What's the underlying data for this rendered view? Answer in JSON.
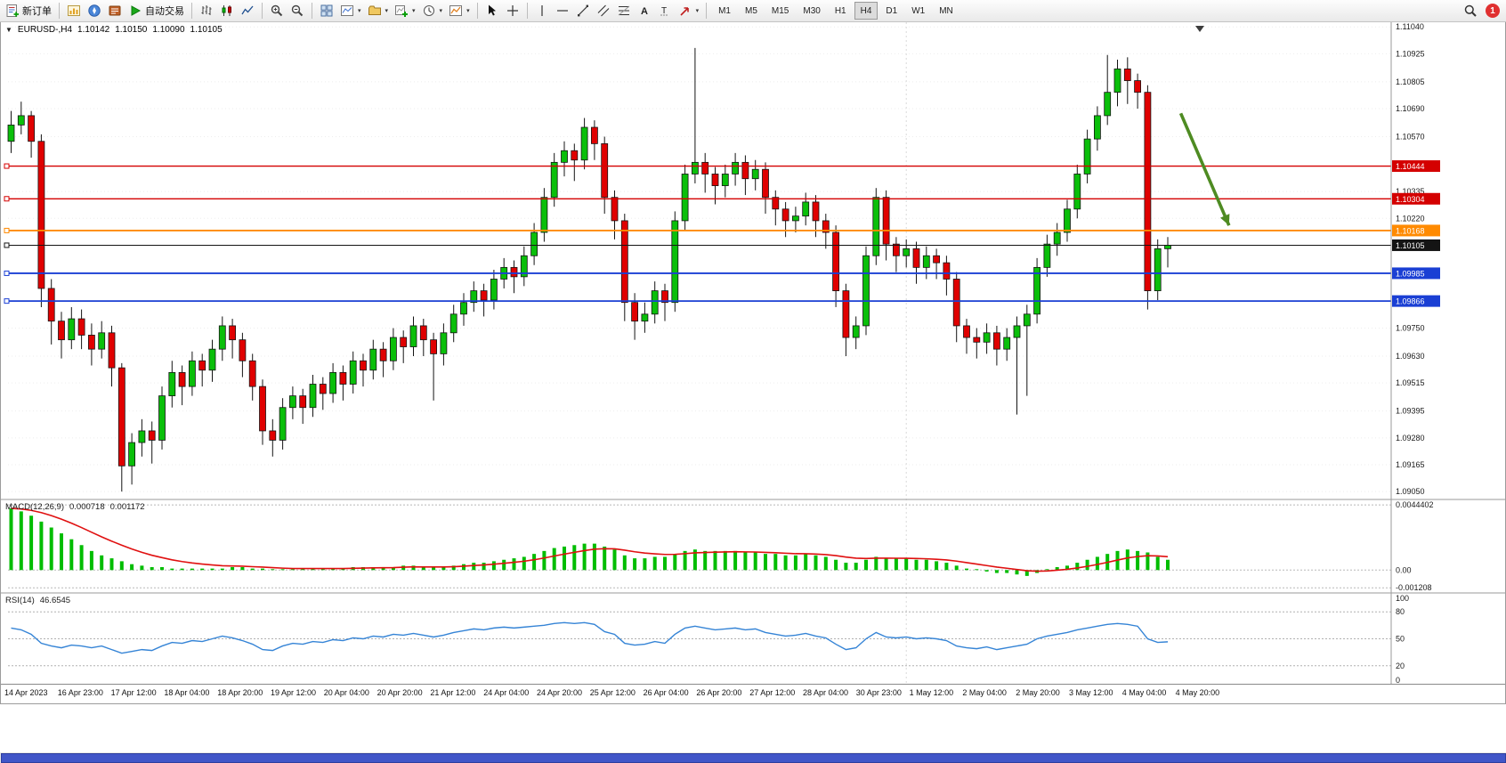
{
  "toolbar": {
    "new_order": "新订单",
    "auto_trading": "自动交易",
    "timeframes": [
      "M1",
      "M5",
      "M15",
      "M30",
      "H1",
      "H4",
      "D1",
      "W1",
      "MN"
    ],
    "active_timeframe": "H4",
    "notification_count": "1"
  },
  "chart_header": {
    "symbol": "EURUSD-,H4",
    "open": "1.10142",
    "high": "1.10150",
    "low": "1.10090",
    "close": "1.10105"
  },
  "price_axis_labels": [
    "1.11040",
    "1.10925",
    "1.10805",
    "1.10690",
    "1.10570",
    "1.10335",
    "1.10220",
    "1.09750",
    "1.09630",
    "1.09515",
    "1.09395",
    "1.09280",
    "1.09165",
    "1.09050"
  ],
  "macd_panel": {
    "label": "MACD(12,26,9)",
    "value_main": "0.000718",
    "value_signal": "0.001172",
    "axis": [
      "0.0044402",
      "0.00",
      "-0.001208"
    ]
  },
  "rsi_panel": {
    "label": "RSI(14)",
    "value": "46.6545",
    "axis": [
      "100",
      "80",
      "50",
      "20",
      "0"
    ]
  },
  "time_axis": [
    "14 Apr 2023",
    "16 Apr 23:00",
    "17 Apr 12:00",
    "18 Apr 04:00",
    "18 Apr 20:00",
    "19 Apr 12:00",
    "20 Apr 04:00",
    "20 Apr 20:00",
    "21 Apr 12:00",
    "24 Apr 04:00",
    "24 Apr 20:00",
    "25 Apr 12:00",
    "26 Apr 04:00",
    "26 Apr 20:00",
    "27 Apr 12:00",
    "28 Apr 04:00",
    "30 Apr 23:00",
    "1 May 12:00",
    "2 May 04:00",
    "2 May 20:00",
    "3 May 12:00",
    "4 May 04:00",
    "4 May 20:00"
  ],
  "chart_data": {
    "type": "candlestick",
    "symbol": "EURUSD-",
    "timeframe": "H4",
    "price_top": 1.1106,
    "price_bottom": 1.0902,
    "up_color": "#0abf0a",
    "down_color": "#e00000",
    "outline_color": "#141414",
    "grid_prices": [
      1.1104,
      1.10925,
      1.10805,
      1.1069,
      1.1057,
      1.10335,
      1.1022,
      1.0975,
      1.0963,
      1.09515,
      1.09395,
      1.0928,
      1.09165,
      1.0905
    ],
    "separator_index": 89,
    "hlines": [
      {
        "price": 1.10444,
        "label": "1.10444",
        "color": "#d40000",
        "width": 1.4
      },
      {
        "price": 1.10304,
        "label": "1.10304",
        "color": "#d40000",
        "width": 1.4
      },
      {
        "price": 1.10168,
        "label": "1.10168",
        "color": "#ff8a00",
        "width": 1.8
      },
      {
        "price": 1.10105,
        "label": "1.10105",
        "color": "#141414",
        "width": 1
      },
      {
        "price": 1.09985,
        "label": "1.09985",
        "color": "#1a3fd4",
        "width": 1.8
      },
      {
        "price": 1.09866,
        "label": "1.09866",
        "color": "#1a3fd4",
        "width": 1.8
      }
    ],
    "arrow": {
      "i1": 116.6,
      "p1": 1.1067,
      "i2": 121.4,
      "p2": 1.1019,
      "color": "#4e8b22"
    },
    "candles": [
      [
        1.1055,
        1.1068,
        1.105,
        1.1062
      ],
      [
        1.1062,
        1.1072,
        1.1058,
        1.1066
      ],
      [
        1.1066,
        1.1068,
        1.1048,
        1.1055
      ],
      [
        1.1055,
        1.1058,
        1.0984,
        1.0992
      ],
      [
        1.0992,
        1.0996,
        1.0968,
        1.0978
      ],
      [
        1.0978,
        1.0982,
        1.0962,
        1.097
      ],
      [
        1.097,
        1.0984,
        1.0966,
        1.0979
      ],
      [
        1.0979,
        1.0983,
        1.0966,
        1.0972
      ],
      [
        1.0972,
        1.0977,
        1.0959,
        1.0966
      ],
      [
        1.0966,
        1.0978,
        1.0962,
        1.0973
      ],
      [
        1.0973,
        1.0976,
        1.095,
        1.0958
      ],
      [
        1.0958,
        1.096,
        1.0905,
        1.0916
      ],
      [
        1.0916,
        1.093,
        1.0908,
        1.0926
      ],
      [
        1.0926,
        1.0936,
        1.092,
        1.0931
      ],
      [
        1.0931,
        1.0935,
        1.0917,
        1.0927
      ],
      [
        1.0927,
        1.095,
        1.0923,
        1.0946
      ],
      [
        1.0946,
        1.0961,
        1.0941,
        1.0956
      ],
      [
        1.0956,
        1.0959,
        1.0942,
        1.095
      ],
      [
        1.095,
        1.0965,
        1.0946,
        1.0961
      ],
      [
        1.0961,
        1.0964,
        1.095,
        1.0957
      ],
      [
        1.0957,
        1.097,
        1.0952,
        1.0966
      ],
      [
        1.0966,
        1.098,
        1.0961,
        1.0976
      ],
      [
        1.0976,
        1.0979,
        1.0962,
        1.097
      ],
      [
        1.097,
        1.0973,
        1.0954,
        1.0961
      ],
      [
        1.0961,
        1.0964,
        1.0944,
        1.095
      ],
      [
        1.095,
        1.0953,
        1.0925,
        1.0931
      ],
      [
        1.0931,
        1.0936,
        1.092,
        1.0927
      ],
      [
        1.0927,
        1.0945,
        1.0923,
        1.0941
      ],
      [
        1.0941,
        1.095,
        1.0936,
        1.0946
      ],
      [
        1.0946,
        1.0949,
        1.0934,
        1.0941
      ],
      [
        1.0941,
        1.0955,
        1.0937,
        1.0951
      ],
      [
        1.0951,
        1.0954,
        1.094,
        1.0947
      ],
      [
        1.0947,
        1.096,
        1.0943,
        1.0956
      ],
      [
        1.0956,
        1.0959,
        1.0944,
        1.0951
      ],
      [
        1.0951,
        1.0965,
        1.0947,
        1.0961
      ],
      [
        1.0961,
        1.0964,
        1.095,
        1.0957
      ],
      [
        1.0957,
        1.097,
        1.0953,
        1.0966
      ],
      [
        1.0966,
        1.0969,
        1.0954,
        1.0961
      ],
      [
        1.0961,
        1.0975,
        1.0957,
        1.0971
      ],
      [
        1.0971,
        1.0974,
        1.096,
        1.0967
      ],
      [
        1.0967,
        1.098,
        1.0963,
        1.0976
      ],
      [
        1.0976,
        1.0979,
        1.0963,
        1.097
      ],
      [
        1.097,
        1.0973,
        1.0944,
        1.0964
      ],
      [
        1.0964,
        1.0977,
        1.0959,
        1.0973
      ],
      [
        1.0973,
        1.0985,
        1.0969,
        1.0981
      ],
      [
        1.0981,
        1.099,
        1.0976,
        1.0986
      ],
      [
        1.0986,
        1.0995,
        1.0982,
        1.0991
      ],
      [
        1.0991,
        1.0994,
        1.098,
        1.0987
      ],
      [
        1.0987,
        1.1,
        1.0983,
        1.0996
      ],
      [
        1.0996,
        1.1005,
        1.0992,
        1.1001
      ],
      [
        1.1001,
        1.1004,
        1.099,
        1.0997
      ],
      [
        1.0997,
        1.101,
        1.0993,
        1.1006
      ],
      [
        1.1006,
        1.102,
        1.1002,
        1.1016
      ],
      [
        1.1016,
        1.1035,
        1.1012,
        1.1031
      ],
      [
        1.1031,
        1.105,
        1.1027,
        1.1046
      ],
      [
        1.1046,
        1.1055,
        1.104,
        1.1051
      ],
      [
        1.1051,
        1.1054,
        1.1038,
        1.1047
      ],
      [
        1.1047,
        1.1065,
        1.1043,
        1.1061
      ],
      [
        1.1061,
        1.1064,
        1.1047,
        1.1054
      ],
      [
        1.1054,
        1.1057,
        1.1024,
        1.1031
      ],
      [
        1.1031,
        1.1034,
        1.1013,
        1.1021
      ],
      [
        1.1021,
        1.1024,
        1.0978,
        1.0986
      ],
      [
        1.0986,
        1.099,
        1.097,
        1.0978
      ],
      [
        1.0978,
        1.0986,
        1.0973,
        1.0981
      ],
      [
        1.0981,
        1.0995,
        1.0977,
        1.0991
      ],
      [
        1.0991,
        1.0994,
        1.0978,
        1.0986
      ],
      [
        1.0986,
        1.1025,
        1.0982,
        1.1021
      ],
      [
        1.1021,
        1.1045,
        1.1017,
        1.1041
      ],
      [
        1.1041,
        1.1095,
        1.1037,
        1.1046
      ],
      [
        1.1046,
        1.105,
        1.1033,
        1.1041
      ],
      [
        1.1041,
        1.1044,
        1.1028,
        1.1036
      ],
      [
        1.1036,
        1.1045,
        1.1031,
        1.1041
      ],
      [
        1.1041,
        1.105,
        1.1036,
        1.1046
      ],
      [
        1.1046,
        1.1049,
        1.1032,
        1.1039
      ],
      [
        1.1039,
        1.1047,
        1.1034,
        1.1043
      ],
      [
        1.1043,
        1.1046,
        1.1024,
        1.1031
      ],
      [
        1.1031,
        1.1034,
        1.1019,
        1.1026
      ],
      [
        1.1026,
        1.1029,
        1.1014,
        1.1021
      ],
      [
        1.1021,
        1.1027,
        1.1016,
        1.1023
      ],
      [
        1.1023,
        1.1033,
        1.1019,
        1.1029
      ],
      [
        1.1029,
        1.1032,
        1.1014,
        1.1021
      ],
      [
        1.1021,
        1.1024,
        1.1009,
        1.1016
      ],
      [
        1.1016,
        1.1019,
        1.0984,
        1.0991
      ],
      [
        1.0991,
        1.0994,
        1.0963,
        1.0971
      ],
      [
        1.0971,
        1.098,
        1.0966,
        1.0976
      ],
      [
        1.0976,
        1.101,
        1.0972,
        1.1006
      ],
      [
        1.1006,
        1.1035,
        1.1002,
        1.1031
      ],
      [
        1.1031,
        1.1034,
        1.1004,
        1.1011
      ],
      [
        1.1011,
        1.1014,
        1.0999,
        1.1006
      ],
      [
        1.1006,
        1.1013,
        1.1001,
        1.1009
      ],
      [
        1.1009,
        1.1012,
        1.0994,
        1.1001
      ],
      [
        1.1001,
        1.101,
        1.0996,
        1.1006
      ],
      [
        1.1006,
        1.1009,
        1.0996,
        1.1003
      ],
      [
        1.1003,
        1.1006,
        1.0989,
        1.0996
      ],
      [
        1.0996,
        1.0999,
        1.0969,
        1.0976
      ],
      [
        1.0976,
        1.0979,
        1.0964,
        1.0971
      ],
      [
        1.0971,
        1.0975,
        1.0962,
        1.0969
      ],
      [
        1.0969,
        1.0977,
        1.0964,
        1.0973
      ],
      [
        1.0973,
        1.0976,
        1.0959,
        1.0966
      ],
      [
        1.0966,
        1.0975,
        1.0961,
        1.0971
      ],
      [
        1.0971,
        1.098,
        1.0938,
        1.0976
      ],
      [
        1.0976,
        1.0985,
        1.0946,
        1.0981
      ],
      [
        1.0981,
        1.1005,
        1.0977,
        1.1001
      ],
      [
        1.1001,
        1.1015,
        1.0997,
        1.1011
      ],
      [
        1.1011,
        1.102,
        1.1006,
        1.1016
      ],
      [
        1.1016,
        1.103,
        1.1012,
        1.1026
      ],
      [
        1.1026,
        1.1045,
        1.1022,
        1.1041
      ],
      [
        1.1041,
        1.106,
        1.1037,
        1.1056
      ],
      [
        1.1056,
        1.107,
        1.1051,
        1.1066
      ],
      [
        1.1066,
        1.1092,
        1.1062,
        1.1076
      ],
      [
        1.1076,
        1.109,
        1.107,
        1.1086
      ],
      [
        1.1086,
        1.1091,
        1.1071,
        1.1081
      ],
      [
        1.1081,
        1.1084,
        1.1069,
        1.1076
      ],
      [
        1.1076,
        1.1079,
        1.0983,
        1.0991
      ],
      [
        1.0991,
        1.1013,
        1.0987,
        1.1009
      ],
      [
        1.1009,
        1.1014,
        1.1001,
        1.10105
      ]
    ],
    "macd": {
      "scale_max": 0.00475,
      "scale_min": -0.0015,
      "axis_values": [
        0.0044402,
        0,
        -0.001208
      ],
      "hist_color": "#00bd00",
      "signal_color": "#e01010",
      "histogram": [
        0.0042,
        0.004,
        0.0037,
        0.0033,
        0.0029,
        0.0025,
        0.0021,
        0.0017,
        0.0013,
        0.001,
        0.0008,
        0.0006,
        0.0004,
        0.0003,
        0.0002,
        0.0002,
        0.0001,
        0.0001,
        0.0001,
        0.0001,
        0.0001,
        0.0001,
        0.0002,
        0.0002,
        0.0001,
        0.0001,
        0,
        0,
        0,
        0.0001,
        0.0001,
        0.0001,
        0.0001,
        0.0001,
        0.0002,
        0.0002,
        0.0002,
        0.0002,
        0.0002,
        0.0003,
        0.0003,
        0.0002,
        0.0002,
        0.0002,
        0.0003,
        0.0004,
        0.0005,
        0.0005,
        0.0006,
        0.0007,
        0.0008,
        0.0009,
        0.0011,
        0.0013,
        0.0015,
        0.0016,
        0.0017,
        0.0018,
        0.0018,
        0.0016,
        0.0014,
        0.001,
        0.0008,
        0.0008,
        0.0009,
        0.0009,
        0.0011,
        0.0013,
        0.0014,
        0.0013,
        0.0013,
        0.0013,
        0.0013,
        0.0012,
        0.0012,
        0.0011,
        0.0011,
        0.001,
        0.001,
        0.0011,
        0.001,
        0.0009,
        0.0007,
        0.0005,
        0.0005,
        0.0007,
        0.0009,
        0.0008,
        0.0008,
        0.0008,
        0.0007,
        0.0007,
        0.0006,
        0.0005,
        0.0003,
        0.0001,
        0,
        -0.0001,
        -0.0002,
        -0.0002,
        -0.0003,
        -0.0004,
        -0.0002,
        0,
        0.0002,
        0.0003,
        0.0005,
        0.0007,
        0.0009,
        0.0011,
        0.0013,
        0.0014,
        0.0013,
        0.0012,
        0.0009,
        0.0007
      ]
    },
    "rsi": {
      "color": "#3584d6",
      "levels": [
        80,
        50,
        20
      ],
      "axis_values": [
        100,
        80,
        50,
        20,
        0
      ],
      "values": [
        62,
        60,
        55,
        45,
        42,
        40,
        43,
        42,
        40,
        42,
        38,
        34,
        36,
        38,
        37,
        42,
        46,
        45,
        48,
        47,
        50,
        53,
        51,
        48,
        44,
        38,
        37,
        42,
        45,
        44,
        47,
        46,
        49,
        48,
        51,
        50,
        53,
        52,
        55,
        54,
        56,
        54,
        52,
        54,
        57,
        59,
        61,
        60,
        62,
        63,
        62,
        63,
        64,
        65,
        67,
        68,
        67,
        68,
        66,
        58,
        55,
        45,
        43,
        44,
        47,
        45,
        55,
        62,
        64,
        62,
        60,
        61,
        62,
        60,
        61,
        57,
        55,
        53,
        54,
        56,
        53,
        51,
        44,
        38,
        40,
        50,
        57,
        52,
        51,
        52,
        50,
        51,
        50,
        48,
        42,
        40,
        39,
        41,
        38,
        40,
        42,
        44,
        50,
        53,
        55,
        57,
        60,
        62,
        64,
        66,
        67,
        66,
        64,
        50,
        46,
        46.65
      ]
    }
  }
}
